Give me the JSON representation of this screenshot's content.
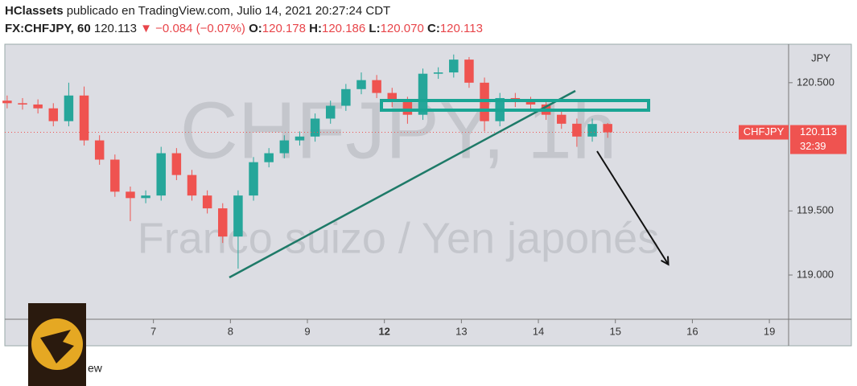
{
  "header": {
    "author": "HClassets",
    "published": "publicado en TradingView.com, Julio 14, 2021 20:27:24 CDT",
    "symbol": "FX:CHFJPY, 60",
    "last": "120.113",
    "change": "▼ −0.084 (−0.07%)",
    "open_label": "O:",
    "open": "120.178",
    "high_label": "H:",
    "high": "120.186",
    "low_label": "L:",
    "low": "120.070",
    "close_label": "C:",
    "close": "120.113"
  },
  "footer": "ew",
  "chart_data": {
    "type": "candlestick",
    "watermark": [
      "CHFJPY, 1h",
      "Franco suizo / Yen japonés"
    ],
    "y_axis_label": "JPY",
    "symbol_label": "CHFJPY",
    "last_price": 120.113,
    "countdown": "32:39",
    "up_color": "#26a69a",
    "down_color": "#ef5350",
    "xlim": [
      -0.93,
      9.25
    ],
    "xticks": [
      {
        "value": 1,
        "label": "7"
      },
      {
        "value": 2,
        "label": "8"
      },
      {
        "value": 3,
        "label": "9"
      },
      {
        "value": 4,
        "label": "12"
      },
      {
        "value": 5,
        "label": "13"
      },
      {
        "value": 6,
        "label": "14"
      },
      {
        "value": 7,
        "label": "15"
      },
      {
        "value": 8,
        "label": "16"
      },
      {
        "value": 9,
        "label": "19"
      }
    ],
    "ylim": [
      118.655,
      120.8
    ],
    "yticks": [
      {
        "value": 120.5,
        "label": "120.500"
      },
      {
        "value": 119.5,
        "label": "119.500"
      },
      {
        "value": 119,
        "label": "119.000"
      }
    ],
    "grid": false,
    "x": [
      -0.9,
      -0.7,
      -0.5,
      -0.3,
      -0.1,
      0.1,
      0.3,
      0.5,
      0.7,
      0.9,
      1.1,
      1.3,
      1.5,
      1.7,
      1.9,
      2.1,
      2.3,
      2.5,
      2.7,
      2.9,
      3.1,
      3.3,
      3.5,
      3.7,
      3.9,
      4.1,
      4.3,
      4.5,
      4.7,
      4.9,
      5.1,
      5.3,
      5.5,
      5.7,
      5.9,
      6.1,
      6.3,
      6.5,
      6.7,
      6.9
    ],
    "open": [
      120.36,
      120.34,
      120.33,
      120.3,
      120.2,
      120.4,
      120.05,
      119.9,
      119.65,
      119.6,
      119.62,
      119.95,
      119.78,
      119.62,
      119.52,
      119.3,
      119.62,
      119.88,
      119.95,
      120.05,
      120.08,
      120.22,
      120.32,
      120.45,
      120.52,
      120.42,
      120.35,
      120.25,
      120.57,
      120.58,
      120.68,
      120.5,
      120.2,
      120.38,
      120.35,
      120.33,
      120.25,
      120.18,
      120.08,
      120.178
    ],
    "high": [
      120.4,
      120.38,
      120.37,
      120.34,
      120.5,
      120.47,
      120.09,
      119.94,
      119.69,
      119.66,
      120.0,
      119.99,
      119.82,
      119.66,
      119.56,
      119.66,
      119.92,
      119.99,
      120.09,
      120.12,
      120.26,
      120.36,
      120.49,
      120.58,
      120.56,
      120.46,
      120.39,
      120.61,
      120.62,
      120.72,
      120.7,
      120.54,
      120.42,
      120.42,
      120.39,
      120.37,
      120.29,
      120.22,
      120.22,
      120.186
    ],
    "low": [
      120.3,
      120.29,
      120.26,
      120.16,
      120.16,
      120.01,
      119.86,
      119.61,
      119.42,
      119.56,
      119.58,
      119.74,
      119.58,
      119.48,
      119.25,
      119.05,
      119.58,
      119.84,
      119.91,
      120.01,
      120.04,
      120.18,
      120.28,
      120.41,
      120.38,
      120.31,
      120.18,
      120.21,
      120.53,
      120.54,
      120.46,
      120.12,
      120.16,
      120.31,
      120.29,
      120.21,
      120.14,
      120.0,
      120.04,
      120.07
    ],
    "close": [
      120.34,
      120.33,
      120.3,
      120.2,
      120.4,
      120.05,
      119.9,
      119.65,
      119.6,
      119.62,
      119.95,
      119.78,
      119.62,
      119.52,
      119.3,
      119.62,
      119.88,
      119.95,
      120.05,
      120.08,
      120.22,
      120.32,
      120.45,
      120.52,
      120.42,
      120.35,
      120.25,
      120.57,
      120.58,
      120.68,
      120.5,
      120.2,
      120.38,
      120.35,
      120.33,
      120.25,
      120.18,
      120.08,
      120.178,
      120.113
    ]
  }
}
